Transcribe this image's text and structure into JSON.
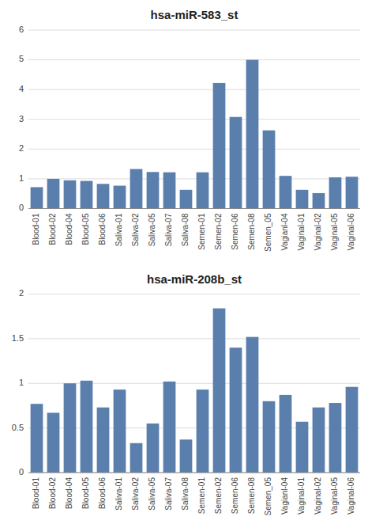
{
  "chart_data": [
    {
      "type": "bar",
      "title": "hsa-miR-583_st",
      "categories": [
        "Blood-01",
        "Blood-02",
        "Blood-04",
        "Blood-05",
        "Blood-06",
        "Saliva-01",
        "Saliva-02",
        "Saliva-05",
        "Saliva-07",
        "Saliva-08",
        "Semen-01",
        "Semen-02",
        "Semen-06",
        "Semen-08",
        "Semen_05",
        "Vagianl-04",
        "Vaginal-01",
        "Vaginal-02",
        "Vaginal-05",
        "Vaginal-06"
      ],
      "values": [
        0.72,
        1.0,
        0.95,
        0.93,
        0.83,
        0.77,
        1.33,
        1.23,
        1.22,
        0.63,
        1.22,
        4.22,
        3.08,
        5.0,
        2.63,
        1.1,
        0.63,
        0.52,
        1.05,
        1.07
      ],
      "color": "#5b7fac",
      "ylim": [
        0,
        6
      ],
      "yticks": [
        0,
        1,
        2,
        3,
        4,
        5,
        6
      ],
      "grid": true
    },
    {
      "type": "bar",
      "title": "hsa-miR-208b_st",
      "categories": [
        "Blood-01",
        "Blood-02",
        "Blood-04",
        "Blood-05",
        "Blood-06",
        "Saliva-01",
        "Saliva-02",
        "Saliva-05",
        "Saliva-07",
        "Saliva-08",
        "Semen-01",
        "Semen-02",
        "Semen-06",
        "Semen-08",
        "Semen_05",
        "Vagianl-04",
        "Vaginal-01",
        "Vaginal-02",
        "Vaginal-05",
        "Vaginal-06"
      ],
      "values": [
        0.77,
        0.67,
        1.0,
        1.03,
        0.73,
        0.93,
        0.33,
        0.55,
        1.02,
        0.37,
        0.93,
        1.84,
        1.4,
        1.52,
        0.8,
        0.87,
        0.57,
        0.73,
        0.78,
        0.96
      ],
      "color": "#5b7fac",
      "ylim": [
        0,
        2
      ],
      "yticks": [
        0,
        0.5,
        1,
        1.5,
        2
      ],
      "grid": true
    }
  ]
}
